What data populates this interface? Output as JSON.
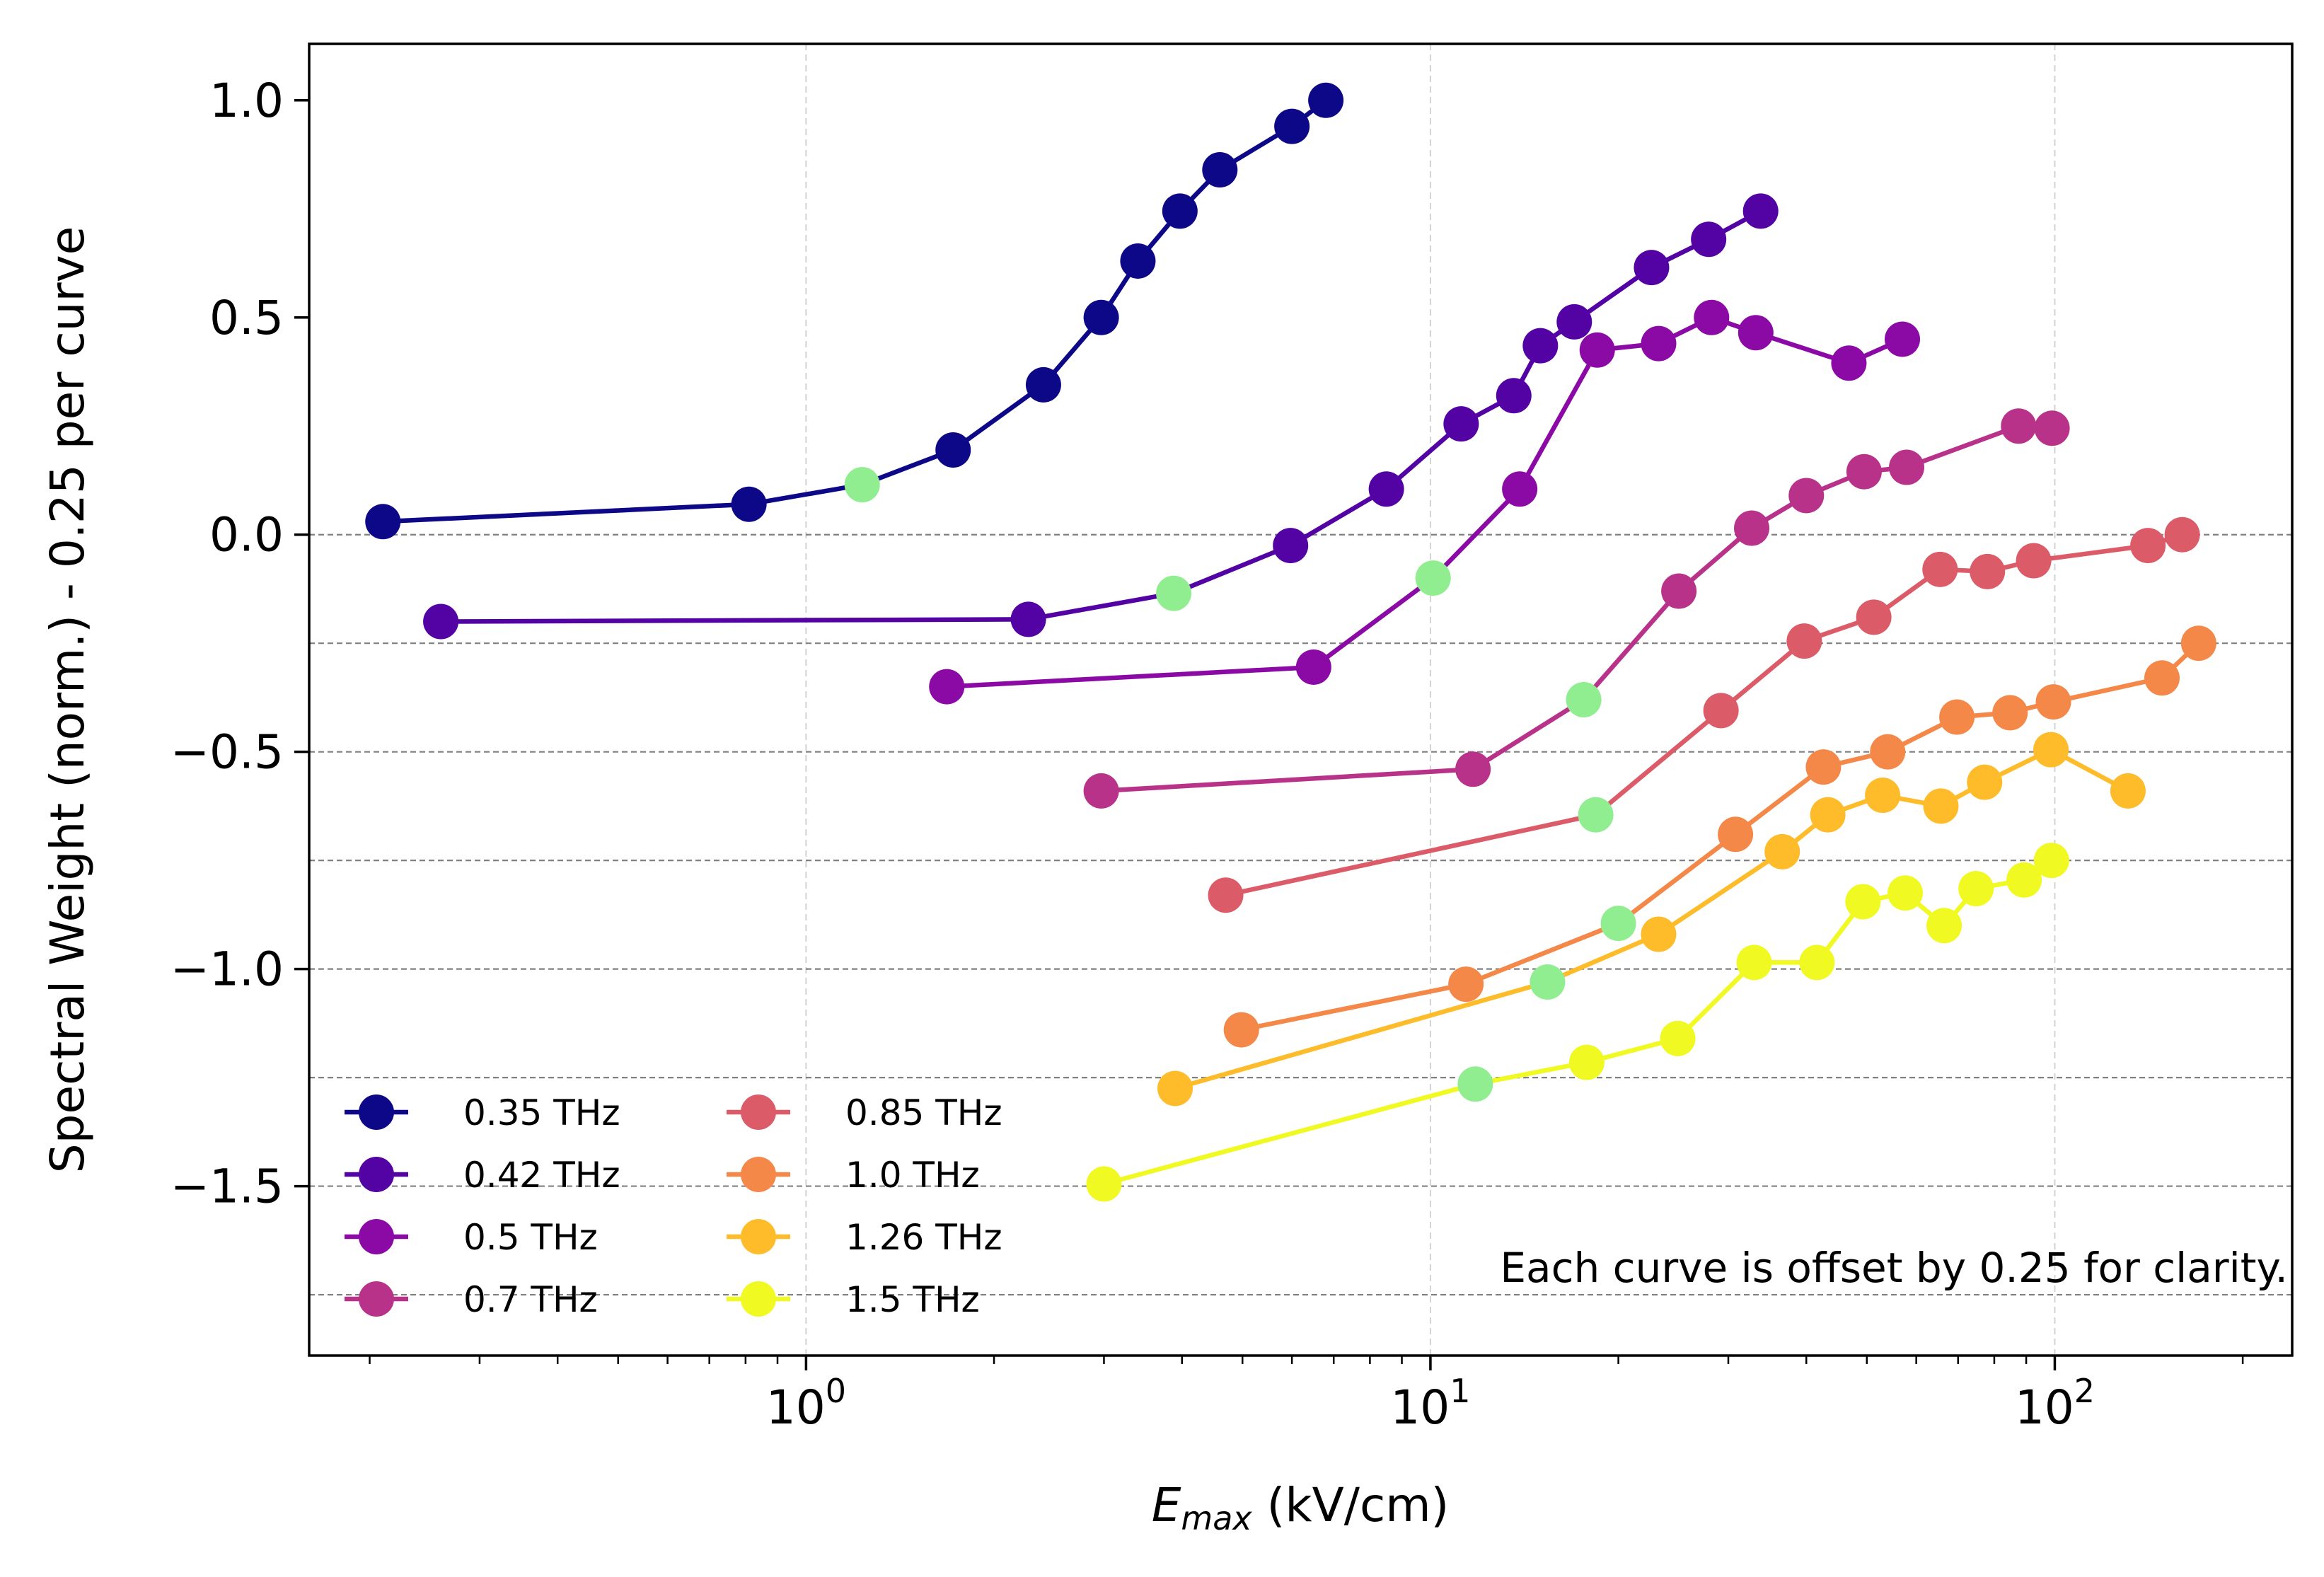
{
  "chart_data": {
    "type": "line",
    "xscale": "log",
    "xlim": [
      0.16,
      240
    ],
    "ylim": [
      -1.89,
      1.13
    ],
    "xlabel": {
      "main": "E",
      "sub": "max",
      "unit": " (kV/cm)"
    },
    "ylabel": "Spectral Weight (norm.) - 0.25 per curve",
    "annotation": "Each curve is offset by 0.25 for clarity.",
    "x_ticks": [
      {
        "value": 1,
        "base": "10",
        "exp": "0"
      },
      {
        "value": 10,
        "base": "10",
        "exp": "1"
      },
      {
        "value": 100,
        "base": "10",
        "exp": "2"
      }
    ],
    "y_ticks": [
      {
        "value": 1.0,
        "label": "1.0"
      },
      {
        "value": 0.5,
        "label": "0.5"
      },
      {
        "value": 0.0,
        "label": "0.0"
      },
      {
        "value": -0.5,
        "label": "−0.5"
      },
      {
        "value": -1.0,
        "label": "−1.0"
      },
      {
        "value": -1.5,
        "label": "−1.5"
      }
    ],
    "offset_lines": [
      0,
      -0.25,
      -0.5,
      -0.75,
      -1.0,
      -1.25,
      -1.5,
      -1.75
    ],
    "highlight_color": "#90ee90",
    "grid_color": "#d3d3d3",
    "offset_line_color": "#808080",
    "series": [
      {
        "name": "0.35 THz",
        "color": "#0d0887",
        "x": [
          0.21,
          0.81,
          1.23,
          1.72,
          2.4,
          2.97,
          3.4,
          3.97,
          4.6,
          6.0,
          6.8
        ],
        "y": [
          0.03,
          0.07,
          0.115,
          0.195,
          0.345,
          0.5,
          0.63,
          0.745,
          0.84,
          0.94,
          1.0
        ],
        "highlight_index": 2
      },
      {
        "name": "0.42 THz",
        "color": "#5302a3",
        "x": [
          0.26,
          2.27,
          3.88,
          5.97,
          8.5,
          11.2,
          13.6,
          15.0,
          17.0,
          22.6,
          27.9,
          33.8
        ],
        "y": [
          -0.2,
          -0.195,
          -0.135,
          -0.025,
          0.105,
          0.255,
          0.32,
          0.435,
          0.49,
          0.615,
          0.68,
          0.745
        ],
        "highlight_index": 2
      },
      {
        "name": "0.5 THz",
        "color": "#8b0aa5",
        "x": [
          1.68,
          6.5,
          10.1,
          13.9,
          18.5,
          23.2,
          28.2,
          33.2,
          46.8,
          57.0
        ],
        "y": [
          -0.35,
          -0.305,
          -0.1,
          0.105,
          0.425,
          0.44,
          0.5,
          0.465,
          0.395,
          0.45
        ],
        "highlight_index": 2
      },
      {
        "name": "0.7 THz",
        "color": "#b83289",
        "x": [
          2.97,
          11.7,
          17.6,
          25.0,
          32.7,
          40.0,
          49.5,
          57.9,
          87.5,
          99.0
        ],
        "y": [
          -0.59,
          -0.54,
          -0.38,
          -0.13,
          0.015,
          0.09,
          0.145,
          0.155,
          0.25,
          0.245
        ],
        "highlight_index": 2
      },
      {
        "name": "0.85 THz",
        "color": "#db5c68",
        "x": [
          4.7,
          18.4,
          29.2,
          39.7,
          51.3,
          65.5,
          78.0,
          92.5,
          141.0,
          160.0
        ],
        "y": [
          -0.83,
          -0.645,
          -0.405,
          -0.245,
          -0.19,
          -0.08,
          -0.085,
          -0.06,
          -0.025,
          0.0
        ],
        "highlight_index": 1
      },
      {
        "name": "1.0 THz",
        "color": "#f48849",
        "x": [
          4.98,
          11.4,
          20.0,
          30.8,
          42.6,
          54.0,
          69.7,
          84.8,
          99.5,
          148.5,
          170.0
        ],
        "y": [
          -1.14,
          -1.035,
          -0.895,
          -0.69,
          -0.535,
          -0.5,
          -0.42,
          -0.41,
          -0.385,
          -0.33,
          -0.25
        ],
        "highlight_index": 2
      },
      {
        "name": "1.26 THz",
        "color": "#febc2a",
        "x": [
          3.9,
          15.4,
          23.2,
          36.6,
          43.3,
          53.0,
          65.7,
          77.2,
          98.6,
          131.0
        ],
        "y": [
          -1.275,
          -1.03,
          -0.92,
          -0.73,
          -0.645,
          -0.6,
          -0.625,
          -0.57,
          -0.495,
          -0.59
        ],
        "highlight_index": 1
      },
      {
        "name": "1.5 THz",
        "color": "#f0f921",
        "x": [
          3.0,
          11.8,
          17.8,
          24.9,
          33.0,
          41.6,
          49.3,
          57.6,
          66.5,
          74.8,
          89.3,
          98.8
        ],
        "y": [
          -1.495,
          -1.265,
          -1.215,
          -1.16,
          -0.985,
          -0.985,
          -0.845,
          -0.825,
          -0.9,
          -0.815,
          -0.795,
          -0.75
        ],
        "highlight_index": 1
      }
    ],
    "legend": {
      "position": "lower-left",
      "columns": 2
    }
  }
}
